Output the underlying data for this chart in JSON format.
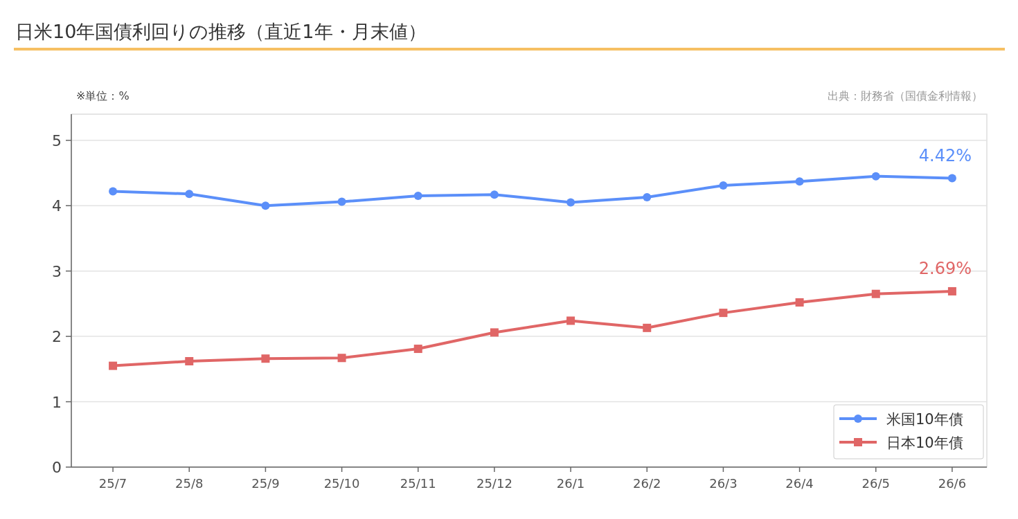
{
  "chart_data": {
    "type": "line",
    "title": "日米10年国債利回りの推移（直近1年・月末値）",
    "annotations": [
      "※単位：%",
      "出典：財務省（国債金利情報）"
    ],
    "categories": [
      "25/7",
      "25/8",
      "25/9",
      "25/10",
      "25/11",
      "25/12",
      "26/1",
      "26/2",
      "26/3",
      "26/4",
      "26/5",
      "26/6"
    ],
    "series": [
      {
        "name": "米国10年債",
        "color": "#5b8ff9",
        "marker": "circle",
        "values": [
          4.22,
          4.18,
          4.0,
          4.06,
          4.15,
          4.17,
          4.05,
          4.13,
          4.31,
          4.37,
          4.45,
          4.42
        ],
        "value_labels": [
          null,
          null,
          null,
          null,
          null,
          null,
          null,
          null,
          null,
          null,
          null,
          "4.42%"
        ]
      },
      {
        "name": "日本10年債",
        "color": "#e06666",
        "marker": "square",
        "values": [
          1.55,
          1.62,
          1.66,
          1.67,
          1.81,
          2.06,
          2.24,
          2.13,
          2.36,
          2.52,
          2.65,
          2.69
        ],
        "value_labels": [
          null,
          null,
          null,
          null,
          null,
          null,
          null,
          null,
          null,
          null,
          null,
          "2.69%"
        ]
      }
    ],
    "ylim": [
      0,
      5.4
    ],
    "yticks": [
      0,
      1,
      2,
      3,
      4,
      5
    ],
    "grid": "y",
    "legend": "bottom right",
    "line_style": "solid"
  }
}
